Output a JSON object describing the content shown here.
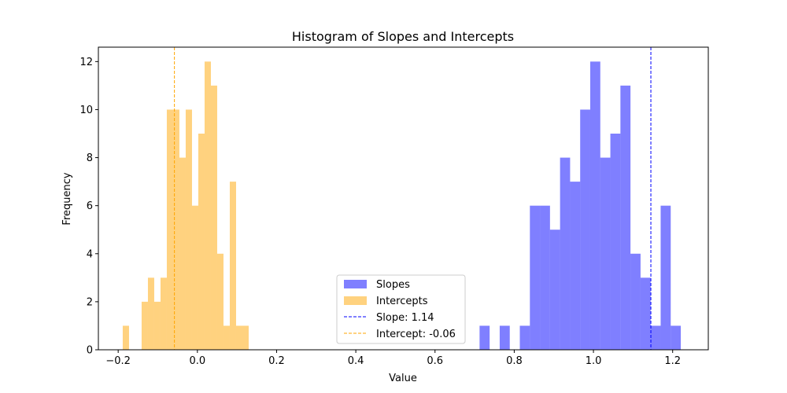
{
  "chart_data": {
    "type": "histogram",
    "title": "Histogram of Slopes and Intercepts",
    "xlabel": "Value",
    "ylabel": "Frequency",
    "xlim": [
      -0.25,
      1.29
    ],
    "ylim": [
      0,
      12.6
    ],
    "xticks": [
      -0.2,
      0.0,
      0.2,
      0.4,
      0.6,
      0.8,
      1.0,
      1.2
    ],
    "xtick_labels": [
      "−0.2",
      "0.0",
      "0.2",
      "0.4",
      "0.6",
      "0.8",
      "1.0",
      "1.2"
    ],
    "yticks": [
      0,
      2,
      4,
      6,
      8,
      10,
      12
    ],
    "ytick_labels": [
      "0",
      "2",
      "4",
      "6",
      "8",
      "10",
      "12"
    ],
    "grid": false,
    "legend_position": "lower-center",
    "series": [
      {
        "name": "Slopes",
        "color": "#0000ff",
        "alpha": 0.5,
        "bin_width": 0.0254,
        "bins": [
          {
            "x0": 0.7125,
            "count": 1
          },
          {
            "x0": 0.7379,
            "count": 0
          },
          {
            "x0": 0.7633,
            "count": 1
          },
          {
            "x0": 0.7887,
            "count": 0
          },
          {
            "x0": 0.8141,
            "count": 1
          },
          {
            "x0": 0.8395,
            "count": 6
          },
          {
            "x0": 0.8649,
            "count": 6
          },
          {
            "x0": 0.8903,
            "count": 5
          },
          {
            "x0": 0.9157,
            "count": 8
          },
          {
            "x0": 0.9411,
            "count": 7
          },
          {
            "x0": 0.9665,
            "count": 10
          },
          {
            "x0": 0.9919,
            "count": 12
          },
          {
            "x0": 1.0173,
            "count": 8
          },
          {
            "x0": 1.0427,
            "count": 9
          },
          {
            "x0": 1.0681,
            "count": 11
          },
          {
            "x0": 1.0935,
            "count": 4
          },
          {
            "x0": 1.1189,
            "count": 3
          },
          {
            "x0": 1.1443,
            "count": 1
          },
          {
            "x0": 1.1697,
            "count": 6
          },
          {
            "x0": 1.1951,
            "count": 1
          }
        ]
      },
      {
        "name": "Intercepts",
        "color": "#ffa500",
        "alpha": 0.5,
        "bin_width": 0.0159,
        "bins": [
          {
            "x0": -0.1885,
            "count": 1
          },
          {
            "x0": -0.1726,
            "count": 0
          },
          {
            "x0": -0.1567,
            "count": 0
          },
          {
            "x0": -0.1408,
            "count": 2
          },
          {
            "x0": -0.1249,
            "count": 3
          },
          {
            "x0": -0.109,
            "count": 2
          },
          {
            "x0": -0.0931,
            "count": 3
          },
          {
            "x0": -0.0772,
            "count": 10
          },
          {
            "x0": -0.0613,
            "count": 10
          },
          {
            "x0": -0.0454,
            "count": 8
          },
          {
            "x0": -0.0295,
            "count": 10
          },
          {
            "x0": -0.0136,
            "count": 6
          },
          {
            "x0": 0.0023,
            "count": 9
          },
          {
            "x0": 0.0182,
            "count": 12
          },
          {
            "x0": 0.0341,
            "count": 11
          },
          {
            "x0": 0.05,
            "count": 4
          },
          {
            "x0": 0.0659,
            "count": 1
          },
          {
            "x0": 0.0818,
            "count": 7
          },
          {
            "x0": 0.0977,
            "count": 1
          },
          {
            "x0": 0.1136,
            "count": 1
          }
        ]
      }
    ],
    "reference_lines": [
      {
        "name": "Slope: 1.14",
        "x": 1.145,
        "color": "#0000ff",
        "style": "dashed"
      },
      {
        "name": "Intercept: -0.06",
        "x": -0.058,
        "color": "#ffa500",
        "style": "dashed"
      }
    ]
  }
}
